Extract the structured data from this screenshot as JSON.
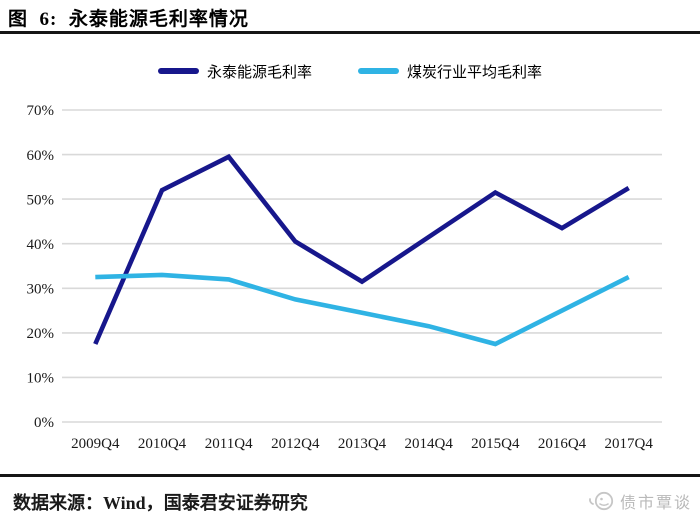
{
  "figure": {
    "title": "图  6:  永泰能源毛利率情况"
  },
  "chart_data": {
    "type": "line",
    "title": "永泰能源毛利率情况",
    "categories": [
      "2009Q4",
      "2010Q4",
      "2011Q4",
      "2012Q4",
      "2013Q4",
      "2014Q4",
      "2015Q4",
      "2016Q4",
      "2017Q4"
    ],
    "series": [
      {
        "name": "永泰能源毛利率",
        "color": "#17178C",
        "values": [
          17.5,
          52,
          59.5,
          40.5,
          31.5,
          41.5,
          51.5,
          43.5,
          52.5
        ]
      },
      {
        "name": "煤炭行业平均毛利率",
        "color": "#2FB3E4",
        "values": [
          32.5,
          33,
          32,
          27.5,
          24.5,
          21.5,
          17.5,
          25,
          32.5
        ]
      }
    ],
    "ylim": [
      0,
      70
    ],
    "ytick_step": 10,
    "ytick_suffix": "%",
    "grid": "horizontal-light-gray",
    "legend_position": "top-center"
  },
  "footer": {
    "source": "数据来源：Wind，国泰君安证券研究",
    "brand": "债市覃谈",
    "brand_icon": "smiley-face-icon"
  },
  "colors": {
    "gridline": "#D9D9D9",
    "axis_text": "#1a1a1a",
    "rule": "#161616",
    "brand_text": "#b9b9b9"
  }
}
